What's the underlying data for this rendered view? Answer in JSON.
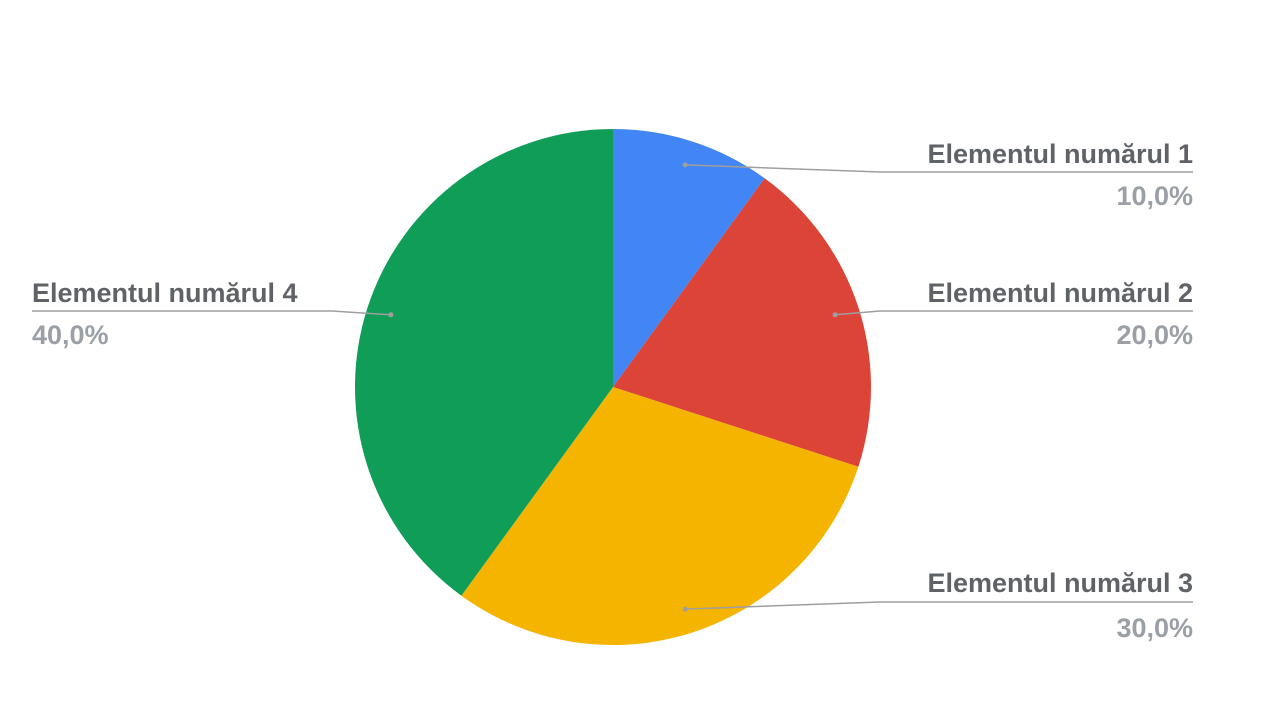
{
  "chart_data": {
    "type": "pie",
    "slices": [
      {
        "label": "Elementul numărul 1",
        "value": 10,
        "pct_label": "10,0%",
        "color": "#4285f4"
      },
      {
        "label": "Elementul numărul 2",
        "value": 20,
        "pct_label": "20,0%",
        "color": "#db4437"
      },
      {
        "label": "Elementul numărul 3",
        "value": 30,
        "pct_label": "30,0%",
        "color": "#f4b400"
      },
      {
        "label": "Elementul numărul 4",
        "value": 40,
        "pct_label": "40,0%",
        "color": "#0f9d58"
      }
    ],
    "legend": "none",
    "labels": "outside with leader lines"
  }
}
